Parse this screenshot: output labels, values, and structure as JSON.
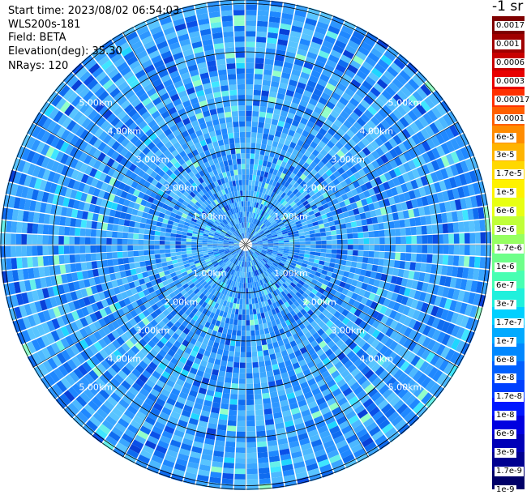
{
  "info": {
    "start_time": "Start time: 2023/08/02 06:54:03",
    "instrument": "WLS200s-181",
    "field": "Field: BETA",
    "elevation": "Elevation(deg): 35.30",
    "nrays": "NRays: 120"
  },
  "colorbar": {
    "title": "-1 sr",
    "labels": [
      "0.0017",
      "0.001",
      "0.0006",
      "0.0003",
      "0.00017",
      "0.0001",
      "6e-5",
      "3e-5",
      "1.7e-5",
      "1e-5",
      "6e-6",
      "3e-6",
      "1.7e-6",
      "1e-6",
      "6e-7",
      "3e-7",
      "1.7e-7",
      "1e-7",
      "6e-8",
      "3e-8",
      "1.7e-8",
      "1e-8",
      "6e-9",
      "3e-9",
      "1.7e-9",
      "1e-9"
    ],
    "colors": [
      "#7f0000",
      "#a00000",
      "#c80000",
      "#e80000",
      "#ff3000",
      "#ff6000",
      "#ff8c00",
      "#ffb400",
      "#ffd800",
      "#fff200",
      "#e8ff12",
      "#c0ff38",
      "#96ff62",
      "#6eff8a",
      "#48ffb2",
      "#20f0dc",
      "#00d0ff",
      "#00aaff",
      "#0088ff",
      "#0060ff",
      "#0040ff",
      "#0018ff",
      "#0000e0",
      "#0000b8",
      "#000090",
      "#000068"
    ]
  },
  "range_labels": [
    "1.00km",
    "2.00km",
    "3.00km",
    "4.00km",
    "5.00km"
  ],
  "rays": 120,
  "ppi_colors": {
    "dominant": [
      "#1f88ff",
      "#3aa6ff",
      "#58c4ff",
      "#0f6cf0",
      "#2d96ff",
      "#4cb8ff"
    ],
    "accent": [
      "#1fd6ff",
      "#3fe6ff",
      "#66f0ea",
      "#92ffc8"
    ],
    "dark": [
      "#0840d8",
      "#0a50e8"
    ]
  }
}
